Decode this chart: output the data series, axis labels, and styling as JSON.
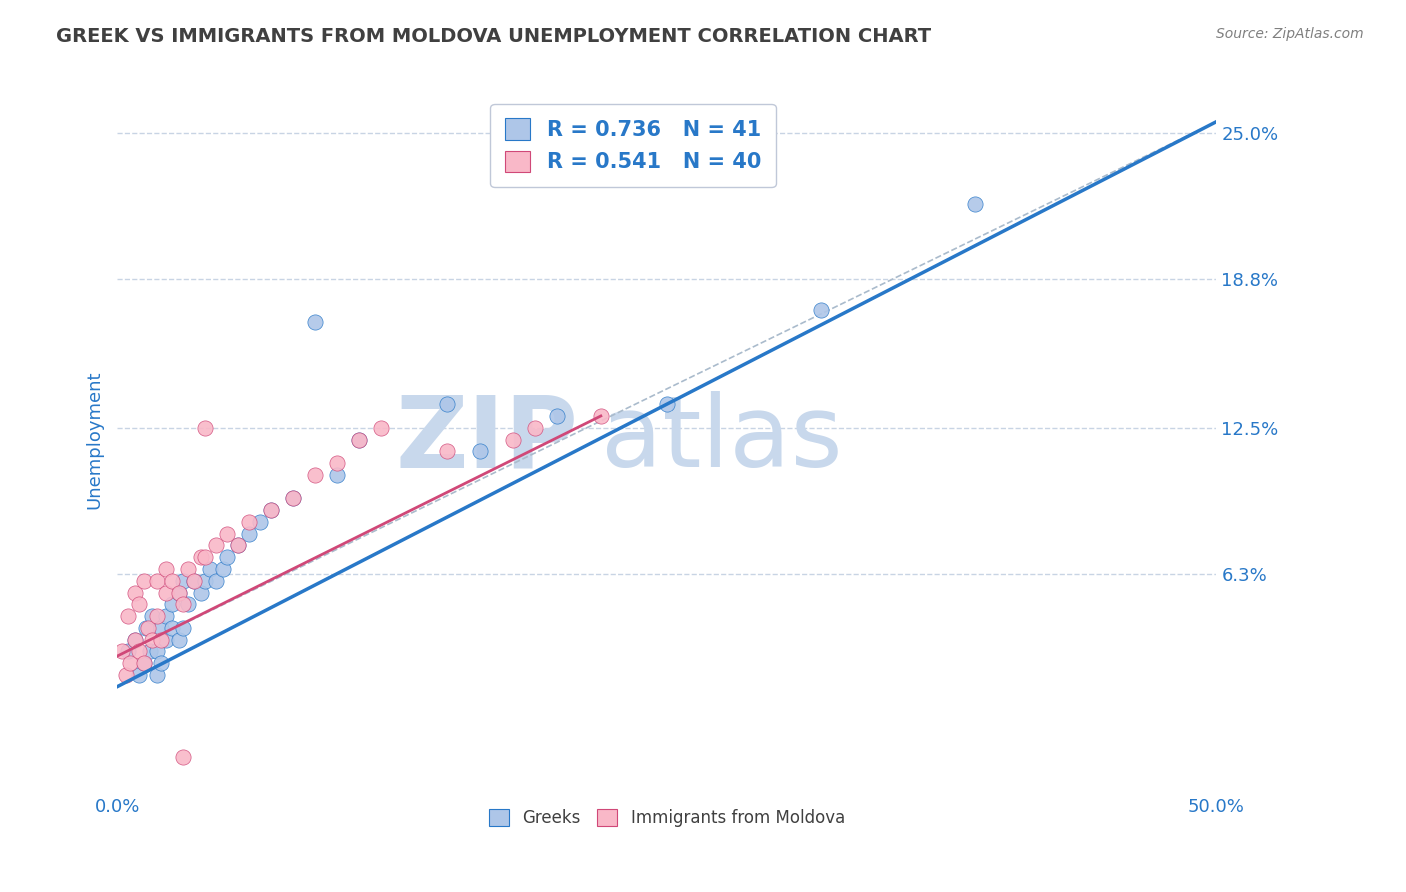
{
  "title": "GREEK VS IMMIGRANTS FROM MOLDOVA UNEMPLOYMENT CORRELATION CHART",
  "source": "Source: ZipAtlas.com",
  "xlabel": "",
  "ylabel": "Unemployment",
  "xlim": [
    0.0,
    0.5
  ],
  "ylim": [
    -0.03,
    0.27
  ],
  "yticks": [
    0.063,
    0.125,
    0.188,
    0.25
  ],
  "ytick_labels": [
    "6.3%",
    "12.5%",
    "18.8%",
    "25.0%"
  ],
  "xticks": [
    0.0,
    0.1,
    0.2,
    0.3,
    0.4,
    0.5
  ],
  "xtick_labels": [
    "0.0%",
    "",
    "",
    "",
    "",
    "50.0%"
  ],
  "greek_R": 0.736,
  "greek_N": 41,
  "moldova_R": 0.541,
  "moldova_N": 40,
  "greek_color": "#AEC6E8",
  "greek_line_color": "#2878C8",
  "moldova_color": "#F9B8C8",
  "moldova_line_color": "#D04878",
  "watermark_zip": "ZIP",
  "watermark_atlas": "atlas",
  "watermark_color": "#C8D8EC",
  "greek_scatter_x": [
    0.005,
    0.008,
    0.01,
    0.012,
    0.013,
    0.015,
    0.016,
    0.018,
    0.018,
    0.02,
    0.02,
    0.022,
    0.022,
    0.025,
    0.025,
    0.028,
    0.028,
    0.03,
    0.03,
    0.032,
    0.035,
    0.038,
    0.04,
    0.042,
    0.045,
    0.048,
    0.05,
    0.055,
    0.06,
    0.065,
    0.07,
    0.08,
    0.09,
    0.1,
    0.11,
    0.15,
    0.165,
    0.2,
    0.25,
    0.32,
    0.39
  ],
  "greek_scatter_y": [
    0.03,
    0.035,
    0.02,
    0.025,
    0.04,
    0.03,
    0.045,
    0.02,
    0.03,
    0.025,
    0.04,
    0.035,
    0.045,
    0.04,
    0.05,
    0.035,
    0.055,
    0.04,
    0.06,
    0.05,
    0.06,
    0.055,
    0.06,
    0.065,
    0.06,
    0.065,
    0.07,
    0.075,
    0.08,
    0.085,
    0.09,
    0.095,
    0.17,
    0.105,
    0.12,
    0.135,
    0.115,
    0.13,
    0.135,
    0.175,
    0.22
  ],
  "moldova_scatter_x": [
    0.002,
    0.004,
    0.005,
    0.006,
    0.008,
    0.008,
    0.01,
    0.01,
    0.012,
    0.012,
    0.014,
    0.016,
    0.018,
    0.018,
    0.02,
    0.022,
    0.022,
    0.025,
    0.028,
    0.03,
    0.032,
    0.035,
    0.038,
    0.04,
    0.045,
    0.05,
    0.055,
    0.06,
    0.07,
    0.08,
    0.09,
    0.1,
    0.11,
    0.12,
    0.15,
    0.18,
    0.19,
    0.22,
    0.03,
    0.04
  ],
  "moldova_scatter_y": [
    0.03,
    0.02,
    0.045,
    0.025,
    0.035,
    0.055,
    0.03,
    0.05,
    0.025,
    0.06,
    0.04,
    0.035,
    0.045,
    0.06,
    0.035,
    0.055,
    0.065,
    0.06,
    0.055,
    0.05,
    0.065,
    0.06,
    0.07,
    0.07,
    0.075,
    0.08,
    0.075,
    0.085,
    0.09,
    0.095,
    0.105,
    0.11,
    0.12,
    0.125,
    0.115,
    0.12,
    0.125,
    0.13,
    -0.015,
    0.125
  ],
  "greek_trend_x": [
    0.0,
    0.5
  ],
  "greek_trend_y": [
    0.015,
    0.255
  ],
  "moldova_trend_x": [
    0.0,
    0.22
  ],
  "moldova_trend_y": [
    0.028,
    0.13
  ],
  "ref_line_x": [
    0.0,
    0.5
  ],
  "ref_line_y": [
    0.028,
    0.255
  ],
  "background_color": "#FFFFFF",
  "grid_color": "#C8D4E4",
  "title_color": "#404040",
  "tick_color": "#2878C8",
  "legend_R_N_color": "#2878C8"
}
